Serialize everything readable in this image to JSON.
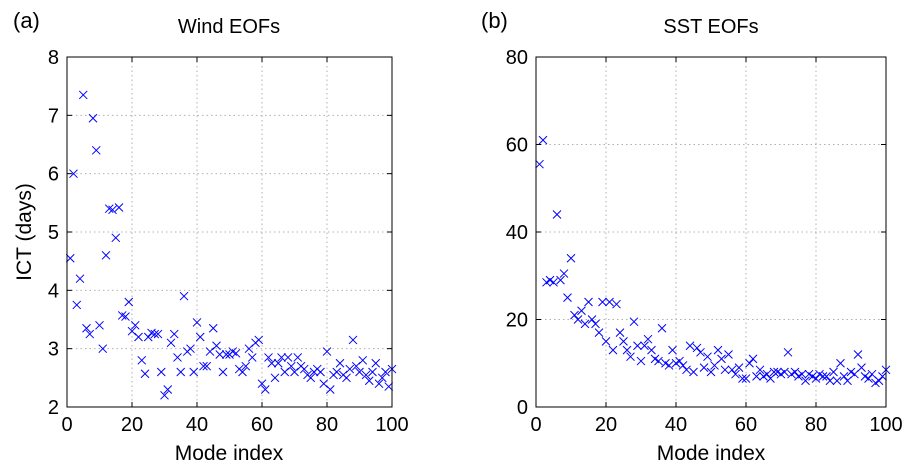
{
  "chart_data": [
    {
      "type": "scatter",
      "panel_label": "(a)",
      "title": "Wind EOFs",
      "xlabel": "Mode index",
      "ylabel": "ICT (days)",
      "xlim": [
        0,
        100
      ],
      "ylim": [
        2,
        8
      ],
      "xticks": [
        "0",
        "20",
        "40",
        "60",
        "80",
        "100"
      ],
      "yticks": [
        "2",
        "3",
        "4",
        "5",
        "6",
        "7",
        "8"
      ],
      "grid": true,
      "marker": "x",
      "color": "#0000ff",
      "series": [
        {
          "x": [
            1,
            2,
            3,
            4,
            5,
            6,
            7,
            8,
            9,
            10,
            11,
            12,
            13,
            14,
            15,
            16,
            17,
            18,
            19,
            20,
            21,
            22,
            23,
            24,
            25,
            26,
            27,
            28,
            29,
            30,
            31,
            32,
            33,
            34,
            35,
            36,
            37,
            38,
            39,
            40,
            41,
            42,
            43,
            44,
            45,
            46,
            47,
            48,
            49,
            50,
            51,
            52,
            53,
            54,
            55,
            56,
            57,
            58,
            59,
            60,
            61,
            62,
            63,
            64,
            65,
            66,
            67,
            68,
            69,
            70,
            71,
            72,
            73,
            74,
            75,
            76,
            77,
            78,
            79,
            80,
            81,
            82,
            83,
            84,
            85,
            86,
            87,
            88,
            89,
            90,
            91,
            92,
            93,
            94,
            95,
            96,
            97,
            98,
            99,
            100
          ],
          "y": [
            4.55,
            6.0,
            3.75,
            4.2,
            7.35,
            3.35,
            3.25,
            6.95,
            6.4,
            3.4,
            3.0,
            4.6,
            5.4,
            5.38,
            4.9,
            5.42,
            3.57,
            3.55,
            3.8,
            3.3,
            3.4,
            3.2,
            2.8,
            2.57,
            3.2,
            3.27,
            3.25,
            3.25,
            2.6,
            2.2,
            2.3,
            3.1,
            3.25,
            2.85,
            2.6,
            3.9,
            2.95,
            3.0,
            2.6,
            3.45,
            3.2,
            2.7,
            2.7,
            2.95,
            3.35,
            3.05,
            2.9,
            2.6,
            2.9,
            2.9,
            2.95,
            2.92,
            2.65,
            2.6,
            2.7,
            3.0,
            2.85,
            3.1,
            3.15,
            2.4,
            2.3,
            2.85,
            2.75,
            2.5,
            2.75,
            2.85,
            2.6,
            2.85,
            2.7,
            2.6,
            2.85,
            2.7,
            2.65,
            2.55,
            2.5,
            2.6,
            2.65,
            2.6,
            2.4,
            2.95,
            2.3,
            2.55,
            2.6,
            2.75,
            2.55,
            2.5,
            2.65,
            3.15,
            2.7,
            2.6,
            2.8,
            2.55,
            2.45,
            2.6,
            2.75,
            2.4,
            2.5,
            2.6,
            2.35,
            2.65
          ]
        }
      ]
    },
    {
      "type": "scatter",
      "panel_label": "(b)",
      "title": "SST EOFs",
      "xlabel": "Mode index",
      "ylabel": "",
      "xlim": [
        0,
        100
      ],
      "ylim": [
        0,
        80
      ],
      "xticks": [
        "0",
        "20",
        "40",
        "60",
        "80",
        "100"
      ],
      "yticks": [
        "0",
        "20",
        "40",
        "60",
        "80"
      ],
      "grid": true,
      "marker": "x",
      "color": "#0000ff",
      "series": [
        {
          "x": [
            1,
            2,
            3,
            4,
            5,
            6,
            7,
            8,
            9,
            10,
            11,
            12,
            13,
            14,
            15,
            16,
            17,
            18,
            19,
            20,
            21,
            22,
            23,
            24,
            25,
            26,
            27,
            28,
            29,
            30,
            31,
            32,
            33,
            34,
            35,
            36,
            37,
            38,
            39,
            40,
            41,
            42,
            43,
            44,
            45,
            46,
            47,
            48,
            49,
            50,
            51,
            52,
            53,
            54,
            55,
            56,
            57,
            58,
            59,
            60,
            61,
            62,
            63,
            64,
            65,
            66,
            67,
            68,
            69,
            70,
            71,
            72,
            73,
            74,
            75,
            76,
            77,
            78,
            79,
            80,
            81,
            82,
            83,
            84,
            85,
            86,
            87,
            88,
            89,
            90,
            91,
            92,
            93,
            94,
            95,
            96,
            97,
            98,
            99,
            100
          ],
          "y": [
            55.5,
            61,
            28.5,
            29,
            28.5,
            44,
            29,
            30.5,
            25,
            34,
            21,
            20,
            22,
            19,
            24,
            20,
            19,
            17,
            24,
            15,
            24,
            13,
            23.5,
            17,
            15,
            13,
            11.5,
            19.5,
            14,
            10.5,
            14,
            15.5,
            13,
            11,
            10.5,
            18,
            10,
            9.5,
            13,
            10,
            10.5,
            9.5,
            8.5,
            14,
            8,
            13.5,
            12.5,
            9,
            11.5,
            8,
            9.5,
            13,
            11,
            8.5,
            12,
            8.5,
            7.5,
            9,
            6.5,
            6.5,
            10,
            11,
            7,
            8.5,
            7,
            7.5,
            6.5,
            8,
            8,
            7.5,
            8,
            12.5,
            7.5,
            8,
            7,
            7.5,
            6,
            7.5,
            7,
            6.5,
            7.5,
            7,
            7,
            6,
            8,
            6,
            10,
            7,
            6,
            8,
            7.5,
            12,
            9,
            7,
            6.5,
            7.5,
            5.5,
            6,
            7,
            8.5
          ]
        }
      ]
    }
  ]
}
